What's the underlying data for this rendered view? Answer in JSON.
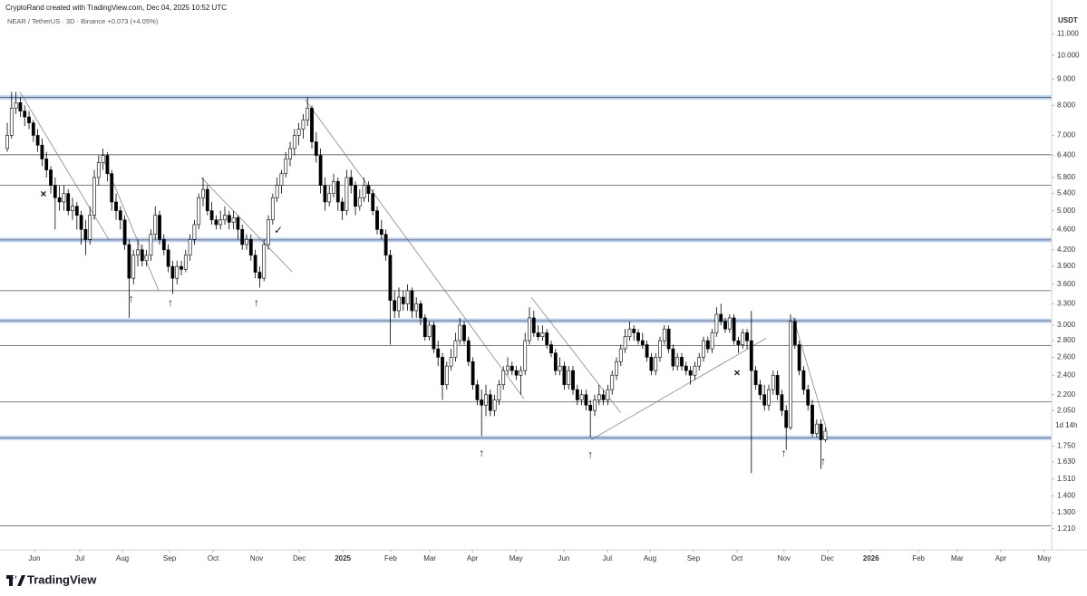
{
  "chart_data": {
    "type": "candlestick",
    "header": "CryptoRand created with TradingView.com, Dec 04, 2025 10:52 UTC",
    "symbol_line": "NEAR / TetherUS · 3D · Binance  +0.073 (+4.05%)",
    "y_unit": "USDT",
    "countdown": "1d 14h",
    "brand": "TradingView",
    "log_scale": true,
    "up_color": "#ffffff",
    "down_color": "#000000",
    "xlim": [
      -1.67,
      240
    ],
    "ylim": [
      1.11,
      12.2
    ],
    "xticks": [
      {
        "value": 6.25,
        "label": "Jun"
      },
      {
        "value": 16.67,
        "label": "Jul"
      },
      {
        "value": 26.46,
        "label": "Aug"
      },
      {
        "value": 37.3,
        "label": "Sep"
      },
      {
        "value": 47.3,
        "label": "Oct"
      },
      {
        "value": 57.3,
        "label": "Nov"
      },
      {
        "value": 67.1,
        "label": "Dec"
      },
      {
        "value": 77.1,
        "label": "2025"
      },
      {
        "value": 88.1,
        "label": "Feb"
      },
      {
        "value": 97.1,
        "label": "Mar"
      },
      {
        "value": 106.9,
        "label": "Apr"
      },
      {
        "value": 116.9,
        "label": "May"
      },
      {
        "value": 127.9,
        "label": "Jun"
      },
      {
        "value": 137.9,
        "label": "Jul"
      },
      {
        "value": 147.7,
        "label": "Aug"
      },
      {
        "value": 157.7,
        "label": "Sep"
      },
      {
        "value": 167.7,
        "label": "Oct"
      },
      {
        "value": 178.5,
        "label": "Nov"
      },
      {
        "value": 188.5,
        "label": "Dec"
      },
      {
        "value": 198.5,
        "label": "2026"
      },
      {
        "value": 209.4,
        "label": "Feb"
      },
      {
        "value": 218.3,
        "label": "Mar"
      },
      {
        "value": 228.3,
        "label": "Apr"
      },
      {
        "value": 238.3,
        "label": "May"
      }
    ],
    "yticks": [
      {
        "value": 11,
        "label": "11.000"
      },
      {
        "value": 10,
        "label": "10.000"
      },
      {
        "value": 9,
        "label": "9.000"
      },
      {
        "value": 8,
        "label": "8.000"
      },
      {
        "value": 7,
        "label": "7.000"
      },
      {
        "value": 6.4,
        "label": "6.400"
      },
      {
        "value": 5.8,
        "label": "5.800"
      },
      {
        "value": 5.4,
        "label": "5.400"
      },
      {
        "value": 5,
        "label": "5.000"
      },
      {
        "value": 4.6,
        "label": "4.600"
      },
      {
        "value": 4.2,
        "label": "4.200"
      },
      {
        "value": 3.9,
        "label": "3.900"
      },
      {
        "value": 3.6,
        "label": "3.600"
      },
      {
        "value": 3.3,
        "label": "3.300"
      },
      {
        "value": 3,
        "label": "3.000"
      },
      {
        "value": 2.8,
        "label": "2.800"
      },
      {
        "value": 2.6,
        "label": "2.600"
      },
      {
        "value": 2.4,
        "label": "2.400"
      },
      {
        "value": 2.2,
        "label": "2.200"
      },
      {
        "value": 2.05,
        "label": "2.050"
      },
      {
        "value": 1.75,
        "label": "1.750"
      },
      {
        "value": 1.63,
        "label": "1.630"
      },
      {
        "value": 1.51,
        "label": "1.510"
      },
      {
        "value": 1.4,
        "label": "1.400"
      },
      {
        "value": 1.3,
        "label": "1.300"
      },
      {
        "value": 1.21,
        "label": "1.210"
      }
    ],
    "levels": [
      {
        "value": 8.29,
        "highlight": true
      },
      {
        "value": 6.42,
        "highlight": false
      },
      {
        "value": 5.6,
        "highlight": false
      },
      {
        "value": 4.39,
        "highlight": true
      },
      {
        "value": 3.5,
        "highlight": false
      },
      {
        "value": 3.06,
        "highlight": true
      },
      {
        "value": 2.74,
        "highlight": false
      },
      {
        "value": 2.13,
        "highlight": false
      },
      {
        "value": 1.815,
        "highlight": true
      },
      {
        "value": 1.225,
        "highlight": false
      }
    ],
    "trendlines": [
      {
        "from": [
          2.9,
          8.5
        ],
        "to": [
          23.3,
          4.4
        ]
      },
      {
        "from": [
          21.7,
          6.4
        ],
        "to": [
          34.8,
          3.5
        ]
      },
      {
        "from": [
          44.6,
          5.8
        ],
        "to": [
          65.4,
          3.81
        ]
      },
      {
        "from": [
          68.5,
          8.2
        ],
        "to": [
          118.75,
          2.16
        ]
      },
      {
        "from": [
          120.4,
          3.4
        ],
        "to": [
          141,
          2.03
        ]
      },
      {
        "from": [
          134.2,
          1.8
        ],
        "to": [
          174.4,
          2.83
        ]
      },
      {
        "from": [
          180.6,
          3.11
        ],
        "to": [
          188.3,
          1.88
        ]
      }
    ],
    "markers": [
      {
        "x": 28.5,
        "y": 3.37,
        "label": "↑"
      },
      {
        "x": 37.5,
        "y": 3.31,
        "label": "↑"
      },
      {
        "x": 57.3,
        "y": 3.31,
        "label": "↑"
      },
      {
        "x": 109,
        "y": 1.69,
        "label": "↑"
      },
      {
        "x": 134,
        "y": 1.68,
        "label": "↑"
      },
      {
        "x": 178.5,
        "y": 1.69,
        "label": "↑"
      },
      {
        "x": 187.5,
        "y": 1.63,
        "label": "↑"
      },
      {
        "x": 8.3,
        "y": 5.37,
        "label": "×"
      },
      {
        "x": 167.7,
        "y": 2.42,
        "label": "×"
      },
      {
        "x": 62.3,
        "y": 4.57,
        "label": "✓"
      }
    ],
    "ohlc": [
      [
        6.6,
        7.4,
        6.5,
        7.0
      ],
      [
        7.0,
        8.5,
        6.9,
        7.9
      ],
      [
        7.9,
        8.5,
        7.7,
        8.1
      ],
      [
        8.1,
        8.3,
        7.6,
        7.8
      ],
      [
        7.8,
        8.0,
        7.3,
        7.6
      ],
      [
        7.6,
        7.8,
        7.2,
        7.4
      ],
      [
        7.4,
        7.5,
        6.8,
        7.0
      ],
      [
        7.0,
        7.2,
        6.5,
        6.7
      ],
      [
        6.7,
        6.9,
        6.1,
        6.3
      ],
      [
        6.3,
        6.5,
        5.8,
        6.0
      ],
      [
        6.0,
        6.1,
        5.4,
        5.6
      ],
      [
        5.6,
        5.8,
        4.6,
        5.3
      ],
      [
        5.3,
        5.6,
        5.0,
        5.2
      ],
      [
        5.2,
        5.6,
        5.0,
        5.4
      ],
      [
        5.4,
        5.5,
        4.9,
        5.0
      ],
      [
        5.0,
        5.3,
        4.8,
        5.1
      ],
      [
        5.1,
        5.2,
        4.6,
        4.9
      ],
      [
        4.9,
        5.0,
        4.3,
        4.6
      ],
      [
        4.6,
        4.8,
        4.1,
        4.4
      ],
      [
        4.4,
        5.1,
        4.3,
        4.9
      ],
      [
        4.9,
        6.0,
        4.8,
        5.8
      ],
      [
        5.8,
        6.4,
        5.6,
        6.2
      ],
      [
        6.2,
        6.6,
        6.0,
        6.4
      ],
      [
        6.4,
        6.5,
        5.7,
        5.9
      ],
      [
        5.9,
        6.0,
        5.0,
        5.2
      ],
      [
        5.2,
        5.4,
        4.8,
        5.0
      ],
      [
        5.0,
        5.1,
        4.6,
        4.8
      ],
      [
        4.8,
        4.9,
        4.2,
        4.3
      ],
      [
        4.3,
        4.4,
        3.1,
        3.7
      ],
      [
        3.7,
        4.2,
        3.6,
        4.1
      ],
      [
        4.1,
        4.4,
        3.9,
        4.2
      ],
      [
        4.2,
        4.3,
        3.9,
        4.0
      ],
      [
        4.0,
        4.2,
        3.9,
        4.1
      ],
      [
        4.1,
        4.6,
        4.0,
        4.5
      ],
      [
        4.5,
        5.1,
        4.4,
        4.9
      ],
      [
        4.9,
        5.0,
        4.3,
        4.4
      ],
      [
        4.4,
        4.5,
        4.1,
        4.2
      ],
      [
        4.2,
        4.3,
        3.8,
        3.9
      ],
      [
        3.9,
        4.0,
        3.45,
        3.7
      ],
      [
        3.7,
        4.0,
        3.6,
        3.9
      ],
      [
        3.9,
        4.0,
        3.75,
        3.85
      ],
      [
        3.85,
        4.2,
        3.8,
        4.1
      ],
      [
        4.1,
        4.5,
        4.0,
        4.4
      ],
      [
        4.4,
        4.8,
        4.3,
        4.7
      ],
      [
        4.7,
        5.4,
        4.6,
        5.3
      ],
      [
        5.3,
        5.8,
        5.1,
        5.5
      ],
      [
        5.5,
        5.6,
        4.9,
        5.0
      ],
      [
        5.0,
        5.2,
        4.7,
        4.8
      ],
      [
        4.8,
        4.9,
        4.6,
        4.7
      ],
      [
        4.7,
        5.0,
        4.6,
        4.8
      ],
      [
        4.8,
        5.1,
        4.7,
        4.9
      ],
      [
        4.9,
        5.0,
        4.6,
        4.75
      ],
      [
        4.75,
        5.0,
        4.6,
        4.85
      ],
      [
        4.85,
        4.9,
        4.4,
        4.6
      ],
      [
        4.6,
        4.7,
        4.2,
        4.3
      ],
      [
        4.3,
        4.5,
        4.2,
        4.4
      ],
      [
        4.4,
        4.5,
        4.0,
        4.1
      ],
      [
        4.1,
        4.2,
        3.7,
        3.8
      ],
      [
        3.8,
        3.9,
        3.55,
        3.7
      ],
      [
        3.7,
        4.4,
        3.65,
        4.3
      ],
      [
        4.3,
        4.9,
        4.2,
        4.8
      ],
      [
        4.8,
        5.4,
        4.7,
        5.3
      ],
      [
        5.3,
        5.8,
        5.2,
        5.6
      ],
      [
        5.6,
        6.0,
        5.4,
        5.9
      ],
      [
        5.9,
        6.5,
        5.8,
        6.3
      ],
      [
        6.3,
        6.8,
        6.1,
        6.6
      ],
      [
        6.6,
        7.2,
        6.4,
        7.0
      ],
      [
        7.0,
        7.4,
        6.7,
        7.2
      ],
      [
        7.2,
        7.7,
        6.9,
        7.5
      ],
      [
        7.5,
        8.3,
        7.3,
        7.9
      ],
      [
        7.9,
        8.0,
        6.6,
        6.8
      ],
      [
        6.8,
        7.1,
        6.2,
        6.4
      ],
      [
        6.4,
        6.6,
        5.4,
        5.6
      ],
      [
        5.6,
        5.8,
        5.0,
        5.2
      ],
      [
        5.2,
        5.6,
        5.1,
        5.4
      ],
      [
        5.4,
        5.9,
        5.3,
        5.7
      ],
      [
        5.7,
        5.8,
        5.0,
        5.2
      ],
      [
        5.2,
        5.3,
        4.8,
        5.0
      ],
      [
        5.0,
        6.0,
        4.9,
        5.8
      ],
      [
        5.8,
        6.0,
        5.4,
        5.6
      ],
      [
        5.6,
        5.7,
        4.9,
        5.1
      ],
      [
        5.1,
        5.5,
        5.0,
        5.3
      ],
      [
        5.3,
        5.8,
        5.2,
        5.6
      ],
      [
        5.6,
        5.7,
        5.2,
        5.4
      ],
      [
        5.4,
        5.5,
        4.9,
        5.0
      ],
      [
        5.0,
        5.1,
        4.5,
        4.6
      ],
      [
        4.6,
        4.8,
        4.4,
        4.5
      ],
      [
        4.5,
        4.6,
        4.0,
        4.1
      ],
      [
        4.1,
        4.2,
        2.75,
        3.35
      ],
      [
        3.35,
        3.5,
        3.1,
        3.2
      ],
      [
        3.2,
        3.55,
        3.1,
        3.4
      ],
      [
        3.4,
        3.5,
        3.2,
        3.3
      ],
      [
        3.3,
        3.6,
        3.2,
        3.5
      ],
      [
        3.5,
        3.55,
        3.1,
        3.2
      ],
      [
        3.2,
        3.4,
        3.1,
        3.3
      ],
      [
        3.3,
        3.35,
        3.0,
        3.1
      ],
      [
        3.1,
        3.15,
        2.8,
        2.85
      ],
      [
        2.85,
        3.05,
        2.8,
        3.0
      ],
      [
        3.0,
        3.05,
        2.65,
        2.7
      ],
      [
        2.7,
        2.8,
        2.5,
        2.6
      ],
      [
        2.6,
        2.65,
        2.15,
        2.3
      ],
      [
        2.3,
        2.55,
        2.25,
        2.5
      ],
      [
        2.5,
        2.7,
        2.45,
        2.6
      ],
      [
        2.6,
        2.9,
        2.55,
        2.8
      ],
      [
        2.8,
        3.1,
        2.75,
        3.0
      ],
      [
        3.0,
        3.05,
        2.75,
        2.8
      ],
      [
        2.8,
        2.85,
        2.5,
        2.55
      ],
      [
        2.55,
        2.6,
        2.25,
        2.3
      ],
      [
        2.3,
        2.35,
        2.1,
        2.15
      ],
      [
        2.15,
        2.25,
        1.83,
        2.1
      ],
      [
        2.1,
        2.3,
        2.0,
        2.2
      ],
      [
        2.2,
        2.25,
        2.0,
        2.05
      ],
      [
        2.05,
        2.2,
        2.0,
        2.15
      ],
      [
        2.15,
        2.35,
        2.1,
        2.3
      ],
      [
        2.3,
        2.5,
        2.25,
        2.45
      ],
      [
        2.45,
        2.6,
        2.4,
        2.5
      ],
      [
        2.5,
        2.55,
        2.4,
        2.45
      ],
      [
        2.45,
        2.5,
        2.35,
        2.4
      ],
      [
        2.4,
        2.5,
        2.2,
        2.45
      ],
      [
        2.45,
        2.9,
        2.4,
        2.8
      ],
      [
        2.8,
        3.25,
        2.75,
        3.1
      ],
      [
        3.1,
        3.2,
        2.85,
        2.9
      ],
      [
        2.9,
        3.0,
        2.8,
        2.85
      ],
      [
        2.85,
        3.0,
        2.8,
        2.9
      ],
      [
        2.9,
        2.95,
        2.7,
        2.75
      ],
      [
        2.75,
        2.8,
        2.6,
        2.65
      ],
      [
        2.65,
        2.7,
        2.4,
        2.45
      ],
      [
        2.45,
        2.6,
        2.4,
        2.5
      ],
      [
        2.5,
        2.55,
        2.25,
        2.3
      ],
      [
        2.3,
        2.5,
        2.25,
        2.45
      ],
      [
        2.45,
        2.5,
        2.2,
        2.25
      ],
      [
        2.25,
        2.3,
        2.1,
        2.15
      ],
      [
        2.15,
        2.25,
        2.1,
        2.2
      ],
      [
        2.2,
        2.25,
        2.05,
        2.1
      ],
      [
        2.1,
        2.15,
        1.82,
        2.05
      ],
      [
        2.05,
        2.2,
        2.0,
        2.15
      ],
      [
        2.15,
        2.3,
        2.1,
        2.2
      ],
      [
        2.2,
        2.25,
        2.1,
        2.15
      ],
      [
        2.15,
        2.3,
        2.1,
        2.25
      ],
      [
        2.25,
        2.45,
        2.2,
        2.4
      ],
      [
        2.4,
        2.6,
        2.35,
        2.55
      ],
      [
        2.55,
        2.75,
        2.5,
        2.7
      ],
      [
        2.7,
        2.95,
        2.65,
        2.85
      ],
      [
        2.85,
        3.05,
        2.8,
        2.95
      ],
      [
        2.95,
        3.0,
        2.8,
        2.9
      ],
      [
        2.9,
        2.95,
        2.75,
        2.8
      ],
      [
        2.8,
        2.9,
        2.7,
        2.75
      ],
      [
        2.75,
        2.8,
        2.55,
        2.6
      ],
      [
        2.6,
        2.65,
        2.4,
        2.45
      ],
      [
        2.45,
        2.65,
        2.4,
        2.6
      ],
      [
        2.6,
        2.85,
        2.55,
        2.8
      ],
      [
        2.8,
        3.0,
        2.75,
        2.95
      ],
      [
        2.95,
        3.0,
        2.65,
        2.7
      ],
      [
        2.7,
        2.75,
        2.45,
        2.5
      ],
      [
        2.5,
        2.65,
        2.45,
        2.6
      ],
      [
        2.6,
        2.65,
        2.45,
        2.5
      ],
      [
        2.5,
        2.55,
        2.4,
        2.45
      ],
      [
        2.45,
        2.5,
        2.3,
        2.4
      ],
      [
        2.4,
        2.55,
        2.35,
        2.5
      ],
      [
        2.5,
        2.65,
        2.45,
        2.6
      ],
      [
        2.6,
        2.85,
        2.55,
        2.8
      ],
      [
        2.8,
        2.85,
        2.65,
        2.7
      ],
      [
        2.7,
        2.95,
        2.65,
        2.9
      ],
      [
        2.9,
        3.25,
        2.85,
        3.15
      ],
      [
        3.15,
        3.3,
        3.0,
        3.05
      ],
      [
        3.05,
        3.1,
        2.9,
        2.95
      ],
      [
        2.95,
        3.15,
        2.9,
        3.1
      ],
      [
        3.1,
        3.15,
        2.75,
        2.8
      ],
      [
        2.8,
        2.85,
        2.65,
        2.75
      ],
      [
        2.75,
        2.95,
        2.7,
        2.9
      ],
      [
        2.9,
        2.95,
        2.7,
        2.8
      ],
      [
        2.8,
        3.2,
        1.55,
        2.45
      ],
      [
        2.45,
        2.5,
        2.25,
        2.3
      ],
      [
        2.3,
        2.35,
        2.15,
        2.2
      ],
      [
        2.2,
        2.3,
        2.05,
        2.1
      ],
      [
        2.1,
        2.3,
        2.05,
        2.25
      ],
      [
        2.25,
        2.45,
        2.2,
        2.4
      ],
      [
        2.4,
        2.45,
        2.15,
        2.2
      ],
      [
        2.2,
        2.25,
        2.0,
        2.05
      ],
      [
        2.05,
        2.1,
        1.72,
        1.9
      ],
      [
        1.9,
        3.15,
        1.88,
        3.05
      ],
      [
        3.05,
        3.1,
        2.7,
        2.75
      ],
      [
        2.75,
        2.8,
        2.4,
        2.45
      ],
      [
        2.45,
        2.5,
        2.2,
        2.25
      ],
      [
        2.25,
        2.3,
        2.05,
        2.1
      ],
      [
        2.1,
        2.15,
        1.82,
        1.85
      ],
      [
        1.85,
        1.97,
        1.82,
        1.93
      ],
      [
        1.93,
        1.97,
        1.58,
        1.8
      ],
      [
        1.8,
        1.9,
        1.78,
        1.87
      ]
    ]
  }
}
